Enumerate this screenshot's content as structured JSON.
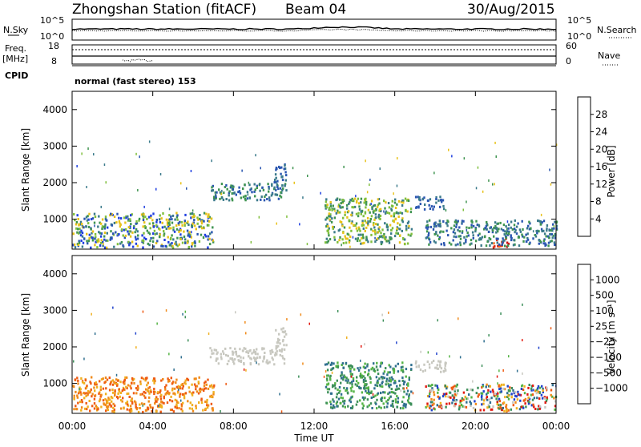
{
  "header": {
    "station": "Zhongshan Station (fitACF)",
    "beam": "Beam 04",
    "date": "30/Aug/2015"
  },
  "aux_panels": {
    "nsky_label": "N.Sky",
    "nsky_ticks": [
      "10^5",
      "10^0"
    ],
    "nsearch_label": "N.Search",
    "nsearch_ticks": [
      "10^5",
      "10^0"
    ],
    "freq_label": "Freq.",
    "freq_unit": "[MHz]",
    "freq_ticks": [
      "18",
      "8"
    ],
    "nave_label": "Nave",
    "nave_ticks": [
      "60",
      "0"
    ],
    "cpid_label": "CPID",
    "cpid_text": "normal (fast stereo) 153"
  },
  "chart_data": [
    {
      "type": "heatmap",
      "panel": "power",
      "ylabel": "Slant Range [km]",
      "ylim": [
        180,
        4500
      ],
      "y_ticks": [
        "1000",
        "2000",
        "3000",
        "4000"
      ],
      "colorbar_label": "Power [dB]",
      "colorbar_ticks": [
        "4",
        "8",
        "12",
        "16",
        "20",
        "24",
        "28"
      ],
      "colorbar_colors": [
        "#1f3fe0",
        "#2a56b0",
        "#3a7a8a",
        "#3f9450",
        "#7fbf3c",
        "#e8c21a",
        "#f29b22",
        "#ee6a1c",
        "#e02a10",
        "#cc1010"
      ],
      "echo_regions": [
        {
          "t": [
            0.0,
            7.0
          ],
          "r": [
            200,
            1200
          ],
          "level": "mixed"
        },
        {
          "t": [
            6.8,
            10.6
          ],
          "r": [
            1550,
            2000
          ],
          "level": "low-mid"
        },
        {
          "t": [
            10.0,
            10.6
          ],
          "r": [
            1800,
            2550
          ],
          "level": "low"
        },
        {
          "t": [
            12.5,
            16.8
          ],
          "r": [
            350,
            1600
          ],
          "level": "mid-high"
        },
        {
          "t": [
            17.0,
            18.5
          ],
          "r": [
            1300,
            1650
          ],
          "level": "low"
        },
        {
          "t": [
            20.8,
            21.6
          ],
          "r": [
            200,
            500
          ],
          "level": "high"
        },
        {
          "t": [
            17.5,
            24.0
          ],
          "r": [
            300,
            1000
          ],
          "level": "low-mid"
        }
      ]
    },
    {
      "type": "heatmap",
      "panel": "velocity",
      "ylabel": "Slant Range [km]",
      "xlabel": "Time UT",
      "ylim": [
        180,
        4500
      ],
      "y_ticks": [
        "1000",
        "2000",
        "3000",
        "4000"
      ],
      "x_ticks": [
        "00:00",
        "04:00",
        "08:00",
        "12:00",
        "16:00",
        "20:00",
        "00:00"
      ],
      "colorbar_label": "Velocity [m s⁻¹]",
      "colorbar_ticks": [
        "1000",
        "500",
        "100",
        "25",
        "−25",
        "−100",
        "−500",
        "−1000"
      ],
      "colorbar_colors": [
        "#2244cc",
        "#2f6f8f",
        "#3d8f5a",
        "#55b445",
        "#c8c8c0",
        "#f0b020",
        "#f08a1a",
        "#ee5a12",
        "#e21a10"
      ],
      "echo_regions": [
        {
          "t": [
            0.0,
            7.0
          ],
          "r": [
            200,
            1200
          ],
          "level": "negative"
        },
        {
          "t": [
            6.8,
            10.6
          ],
          "r": [
            1550,
            2000
          ],
          "level": "near-zero"
        },
        {
          "t": [
            10.0,
            10.6
          ],
          "r": [
            1800,
            2550
          ],
          "level": "near-zero"
        },
        {
          "t": [
            12.5,
            16.8
          ],
          "r": [
            350,
            1600
          ],
          "level": "positive"
        },
        {
          "t": [
            17.0,
            18.5
          ],
          "r": [
            1300,
            1650
          ],
          "level": "near-zero"
        },
        {
          "t": [
            20.8,
            21.6
          ],
          "r": [
            200,
            500
          ],
          "level": "negative"
        },
        {
          "t": [
            17.5,
            24.0
          ],
          "r": [
            300,
            1000
          ],
          "level": "mixed"
        }
      ]
    }
  ]
}
